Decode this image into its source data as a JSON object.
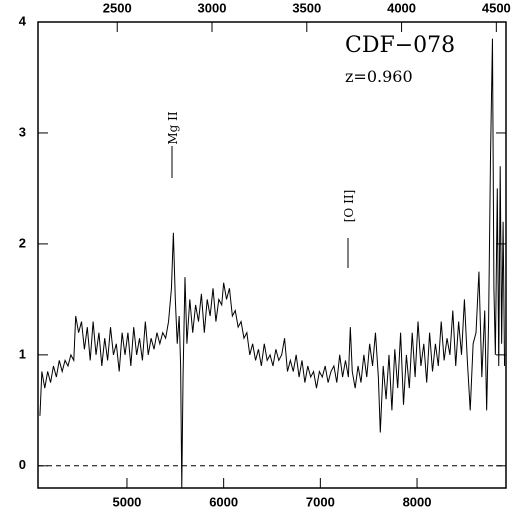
{
  "chart_data": {
    "type": "line",
    "annotations": {
      "object": "CDF−078",
      "redshift": "z=0.960",
      "line1": "Mg II",
      "line2": "[O II]"
    },
    "x": [
      4100,
      4120,
      4150,
      4180,
      4210,
      4240,
      4270,
      4300,
      4330,
      4360,
      4390,
      4420,
      4450,
      4470,
      4500,
      4530,
      4560,
      4590,
      4620,
      4650,
      4680,
      4710,
      4740,
      4770,
      4800,
      4830,
      4860,
      4890,
      4920,
      4950,
      4980,
      5010,
      5040,
      5070,
      5100,
      5130,
      5160,
      5190,
      5220,
      5250,
      5280,
      5310,
      5340,
      5370,
      5400,
      5430,
      5460,
      5480,
      5500,
      5520,
      5540,
      5555,
      5567,
      5580,
      5600,
      5620,
      5650,
      5680,
      5710,
      5740,
      5770,
      5800,
      5830,
      5860,
      5890,
      5920,
      5950,
      5980,
      6000,
      6030,
      6060,
      6090,
      6120,
      6150,
      6180,
      6210,
      6240,
      6270,
      6300,
      6330,
      6360,
      6390,
      6420,
      6450,
      6480,
      6510,
      6540,
      6570,
      6600,
      6630,
      6660,
      6690,
      6720,
      6750,
      6780,
      6810,
      6840,
      6870,
      6900,
      6930,
      6960,
      6990,
      7020,
      7050,
      7080,
      7110,
      7140,
      7170,
      7200,
      7230,
      7260,
      7290,
      7310,
      7330,
      7360,
      7390,
      7420,
      7450,
      7480,
      7510,
      7540,
      7570,
      7600,
      7620,
      7650,
      7680,
      7710,
      7740,
      7770,
      7800,
      7830,
      7860,
      7890,
      7920,
      7950,
      7980,
      8010,
      8040,
      8070,
      8100,
      8130,
      8160,
      8190,
      8220,
      8250,
      8280,
      8310,
      8340,
      8370,
      8400,
      8430,
      8460,
      8490,
      8520,
      8550,
      8580,
      8610,
      8640,
      8670,
      8700,
      8720,
      8740,
      8760,
      8780,
      8795,
      8810,
      8830,
      8845,
      8860,
      8875,
      8890,
      8905
    ],
    "values": [
      0.45,
      0.85,
      0.7,
      0.85,
      0.75,
      0.9,
      0.8,
      0.95,
      0.85,
      0.95,
      0.9,
      1.0,
      0.95,
      1.35,
      1.2,
      1.3,
      1.05,
      1.25,
      0.95,
      1.3,
      1.0,
      1.2,
      0.9,
      1.15,
      0.95,
      1.25,
      1.0,
      1.1,
      0.85,
      1.2,
      1.0,
      1.2,
      0.9,
      1.25,
      1.0,
      1.15,
      0.95,
      1.3,
      1.0,
      1.15,
      1.05,
      1.2,
      1.1,
      1.2,
      1.15,
      1.3,
      1.6,
      2.1,
      1.5,
      1.1,
      1.35,
      0.9,
      -0.2,
      0.8,
      1.7,
      1.1,
      1.5,
      1.2,
      1.45,
      1.3,
      1.55,
      1.2,
      1.5,
      1.35,
      1.6,
      1.3,
      1.5,
      1.45,
      1.65,
      1.5,
      1.6,
      1.35,
      1.4,
      1.25,
      1.3,
      1.15,
      1.2,
      1.0,
      1.1,
      0.95,
      1.05,
      0.9,
      1.1,
      0.95,
      1.0,
      0.9,
      1.05,
      0.95,
      1.0,
      1.15,
      0.85,
      0.95,
      0.85,
      1.0,
      0.8,
      0.95,
      0.75,
      0.9,
      0.8,
      0.85,
      0.7,
      0.85,
      0.8,
      0.9,
      0.75,
      0.85,
      0.9,
      0.75,
      1.0,
      0.8,
      0.95,
      0.8,
      1.25,
      0.85,
      0.7,
      0.9,
      0.75,
      1.0,
      0.8,
      1.1,
      0.9,
      1.2,
      0.8,
      0.3,
      0.9,
      0.6,
      1.0,
      0.5,
      1.05,
      0.7,
      1.2,
      0.55,
      1.0,
      0.7,
      1.2,
      0.8,
      1.3,
      0.9,
      1.1,
      0.75,
      1.2,
      0.85,
      1.1,
      0.9,
      1.3,
      0.95,
      1.15,
      1.0,
      1.4,
      0.9,
      1.3,
      1.0,
      1.5,
      0.95,
      0.5,
      1.1,
      1.2,
      1.75,
      0.8,
      1.4,
      0.5,
      1.3,
      2.8,
      3.85,
      1.6,
      1.0,
      2.5,
      0.9,
      2.7,
      1.1,
      2.2,
      0.9
    ],
    "color": "#000000",
    "xlim": [
      4080,
      8920
    ],
    "xticks": [
      5000,
      6000,
      7000,
      8000
    ],
    "x2lim": [
      2082,
      4551
    ],
    "x2ticks": [
      2500,
      3000,
      3500,
      4000,
      4500
    ],
    "ylim": [
      -0.2,
      4
    ],
    "yticks": [
      0,
      1,
      2,
      3,
      4
    ],
    "hlines": [
      0
    ]
  }
}
